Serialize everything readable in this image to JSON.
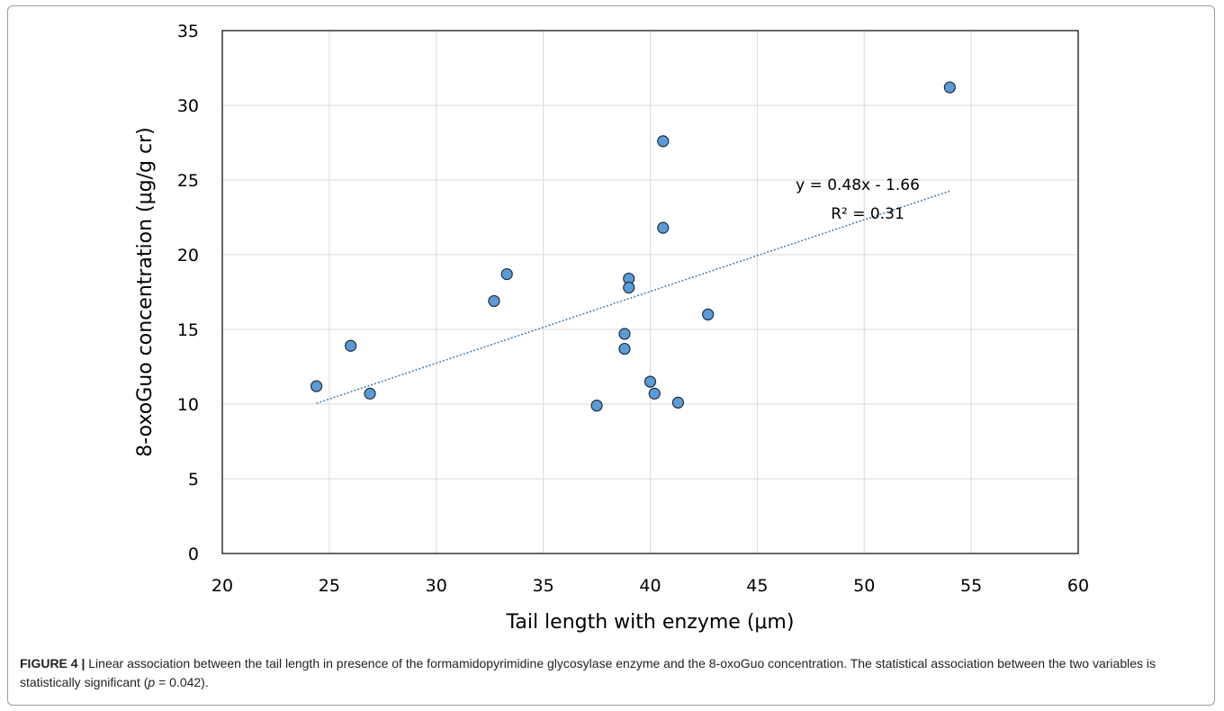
{
  "chart_data": {
    "type": "scatter",
    "xlabel": "Tail length  with enzyme  (μm)",
    "ylabel": "8-oxoGuo concentration  (μg/g cr)",
    "xlim": [
      20,
      60
    ],
    "ylim": [
      0,
      35
    ],
    "x_ticks": [
      "20",
      "25",
      "30",
      "35",
      "40",
      "45",
      "50",
      "55",
      "60"
    ],
    "y_ticks": [
      "0",
      "5",
      "10",
      "15",
      "20",
      "25",
      "30",
      "35"
    ],
    "grid": "vertical and horizontal",
    "points": [
      {
        "x": 24.4,
        "y": 11.2
      },
      {
        "x": 26.0,
        "y": 13.9
      },
      {
        "x": 26.9,
        "y": 10.7
      },
      {
        "x": 32.7,
        "y": 16.9
      },
      {
        "x": 33.3,
        "y": 18.7
      },
      {
        "x": 37.5,
        "y": 9.9
      },
      {
        "x": 38.8,
        "y": 14.7
      },
      {
        "x": 38.8,
        "y": 13.7
      },
      {
        "x": 39.0,
        "y": 18.4
      },
      {
        "x": 39.0,
        "y": 17.8
      },
      {
        "x": 40.0,
        "y": 11.5
      },
      {
        "x": 40.2,
        "y": 10.7
      },
      {
        "x": 40.6,
        "y": 27.6
      },
      {
        "x": 40.6,
        "y": 21.8
      },
      {
        "x": 41.3,
        "y": 10.1
      },
      {
        "x": 42.7,
        "y": 16.0
      },
      {
        "x": 54.0,
        "y": 31.2
      }
    ],
    "trendline": {
      "slope": 0.48,
      "intercept": -1.66,
      "x_range": [
        24.4,
        54.0
      ],
      "equation_label": "y = 0.48x - 1.66",
      "r2_label": "R² = 0.31"
    },
    "marker_color": "#5b9bd5",
    "marker_edge_color": "#1f2d3d",
    "trendline_color": "#4a86b8",
    "grid_color": "#d9d9d9"
  },
  "caption": {
    "label": "FIGURE 4 |",
    "text_before": " Linear association between the tail length in presence of the formamidopyrimidine glycosylase enzyme and the 8-oxoGuo concentration. The statistical association between the two variables is statistically significant (",
    "p_symbol": "p",
    "text_after": " = 0.042)."
  }
}
